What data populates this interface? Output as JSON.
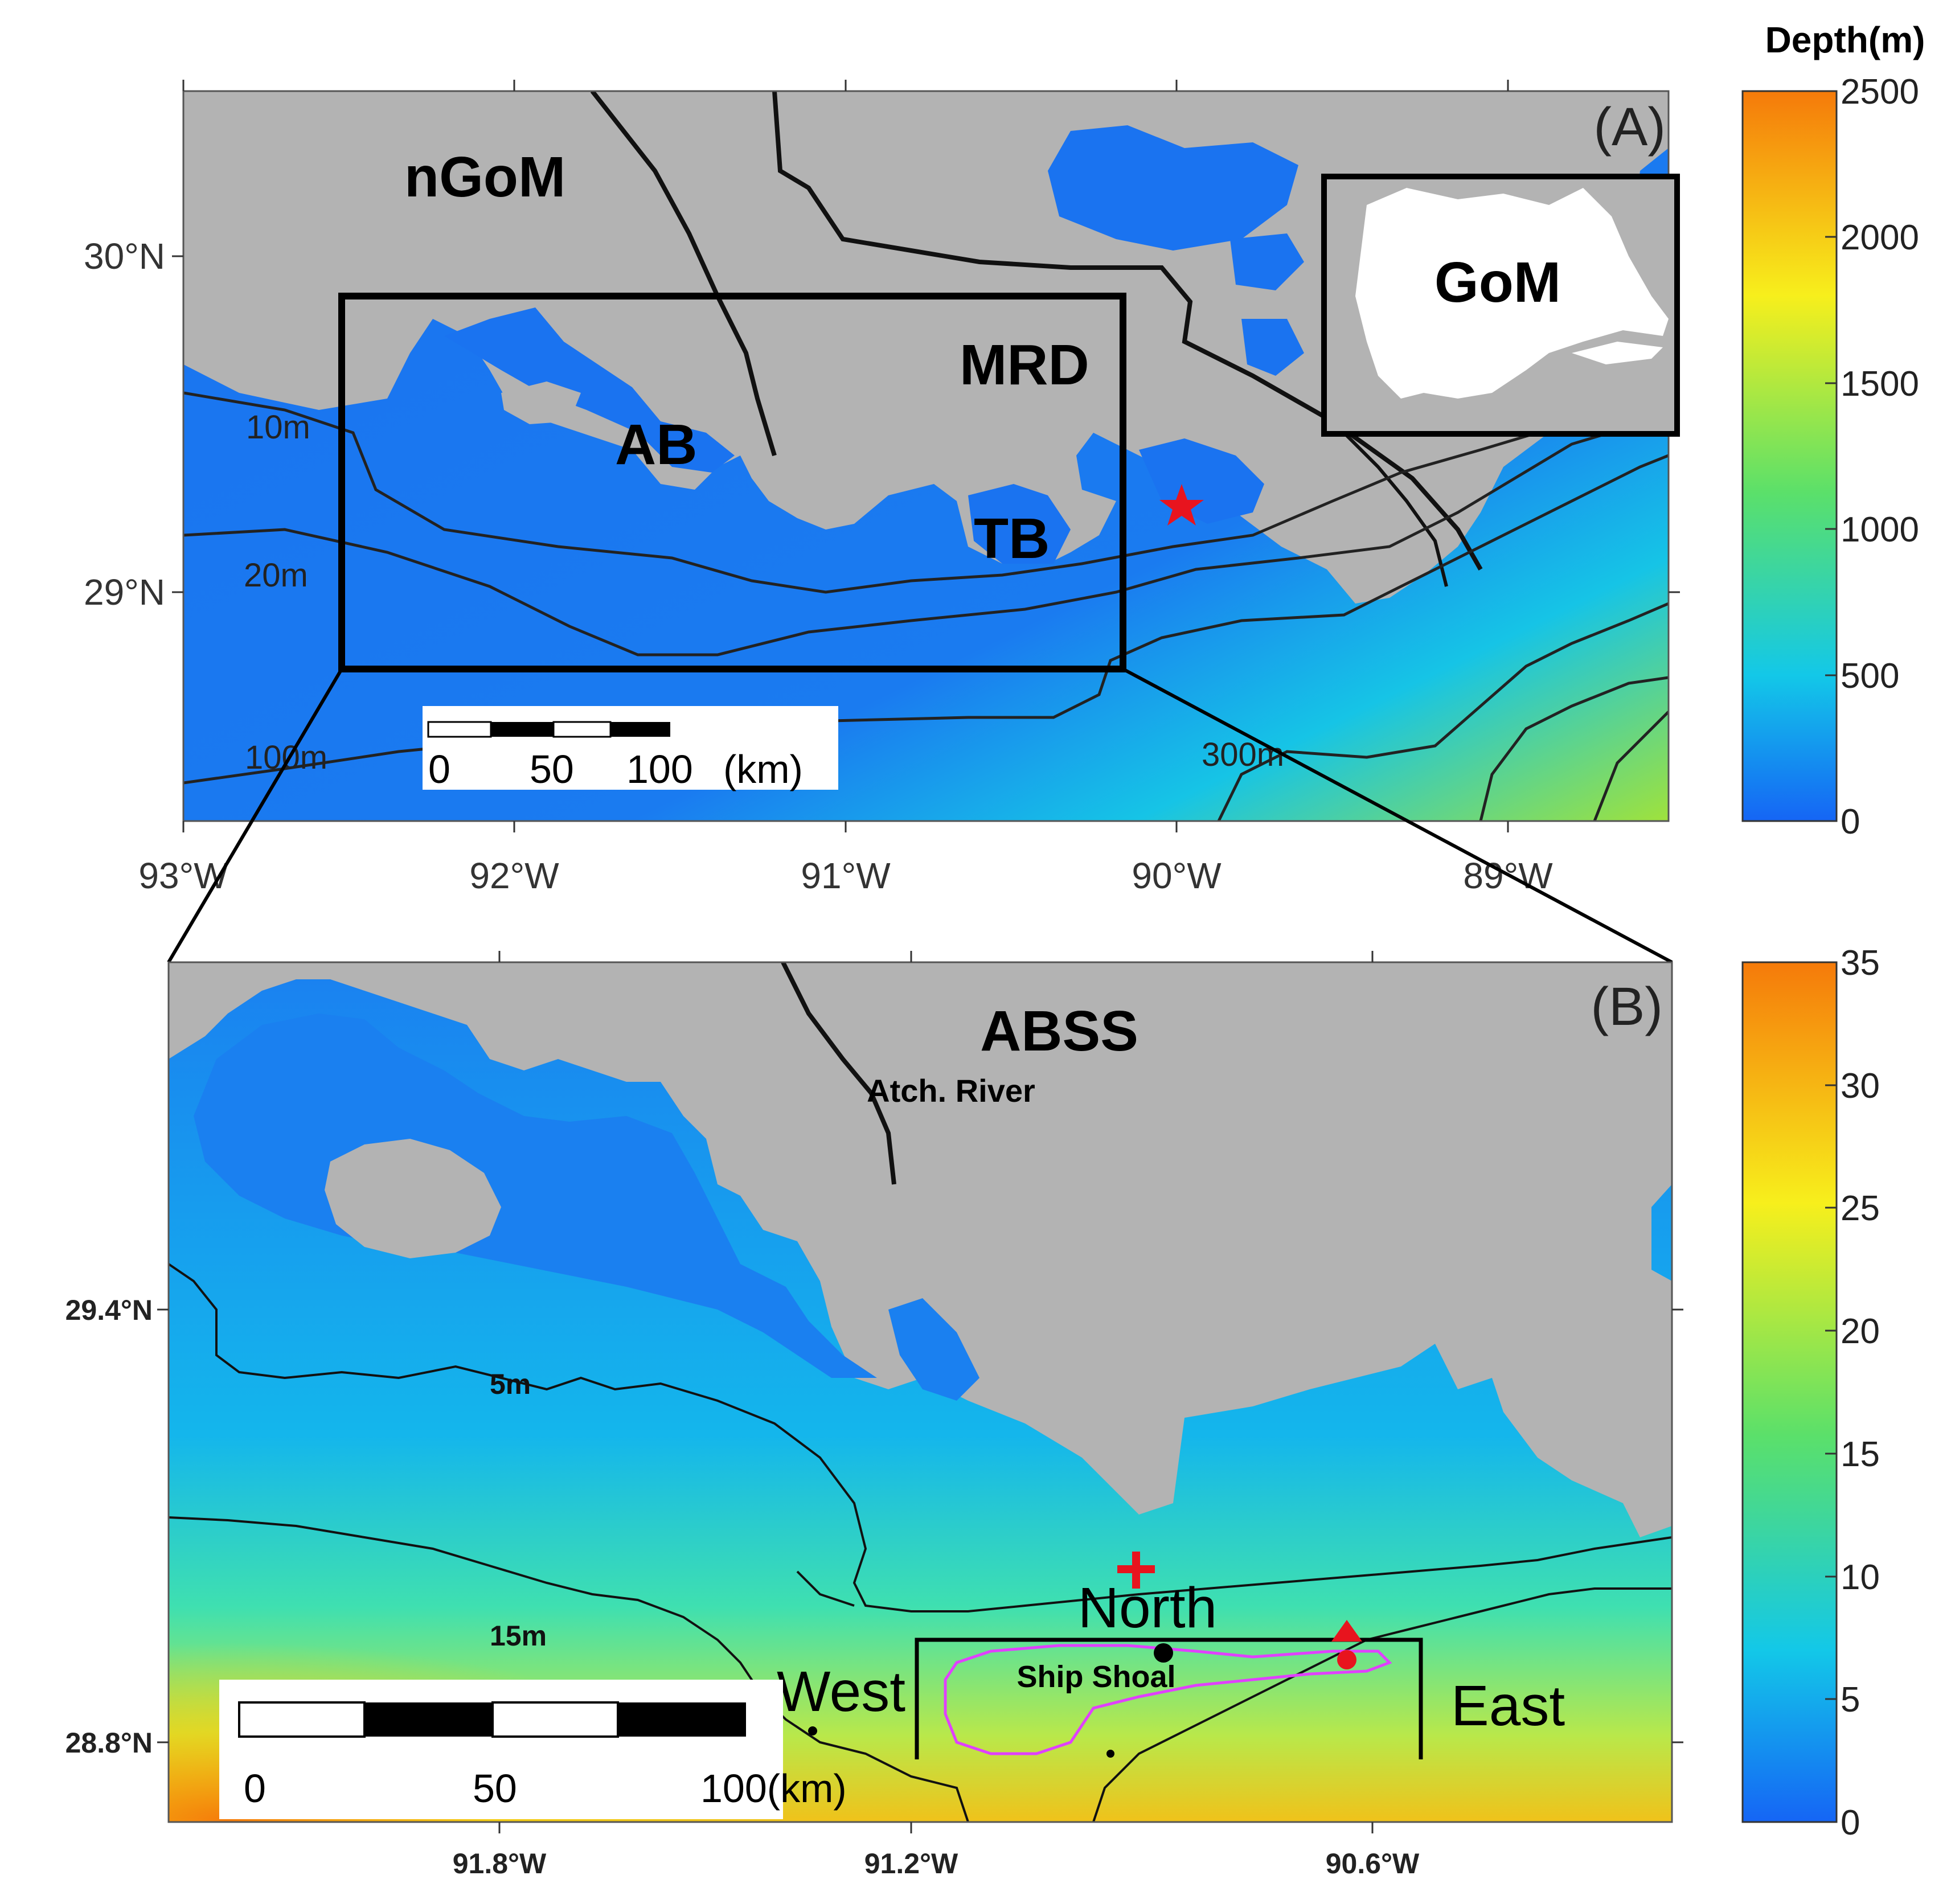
{
  "colorbar_title": "Depth(m)",
  "panel_a": {
    "label": "(A)",
    "regions": {
      "ngom": "nGoM",
      "ab": "AB",
      "mrd": "MRD",
      "tb": "TB"
    },
    "inset_label": "GoM",
    "lat_ticks": [
      "30°N",
      "29°N"
    ],
    "lon_ticks": [
      "93°W",
      "92°W",
      "91°W",
      "90°W",
      "89°W"
    ],
    "contour_labels": [
      "10m",
      "20m",
      "100m",
      "300m"
    ],
    "scale_bar": {
      "zero": "0",
      "mid": "50",
      "end": "100",
      "unit": "(km)"
    },
    "colorbar": {
      "ticks": [
        "2500",
        "2000",
        "1500",
        "1000",
        "500",
        "0"
      ]
    },
    "colors": {
      "land": "#b3b3b3",
      "shelf": "#1a73f0",
      "star": "#e8141e"
    }
  },
  "panel_b": {
    "label": "(B)",
    "region": "ABSS",
    "river": "Atch. River",
    "lat_ticks": [
      "29.4°N",
      "28.8°N"
    ],
    "lon_ticks": [
      "91.8°W",
      "91.2°W",
      "90.6°W"
    ],
    "contour_labels": [
      "5m",
      "15m"
    ],
    "site_labels": {
      "north": "North",
      "west": "West",
      "east": "East",
      "shoal": "Ship Shoal"
    },
    "scale_bar": {
      "zero": "0",
      "mid": "50",
      "end": "100(km)"
    },
    "colorbar": {
      "ticks": [
        "35",
        "30",
        "25",
        "20",
        "15",
        "10",
        "5",
        "0"
      ]
    },
    "colors": {
      "shoal_outline": "#e040ff",
      "markers": "#e8141e",
      "site_dot": "#000000"
    }
  }
}
